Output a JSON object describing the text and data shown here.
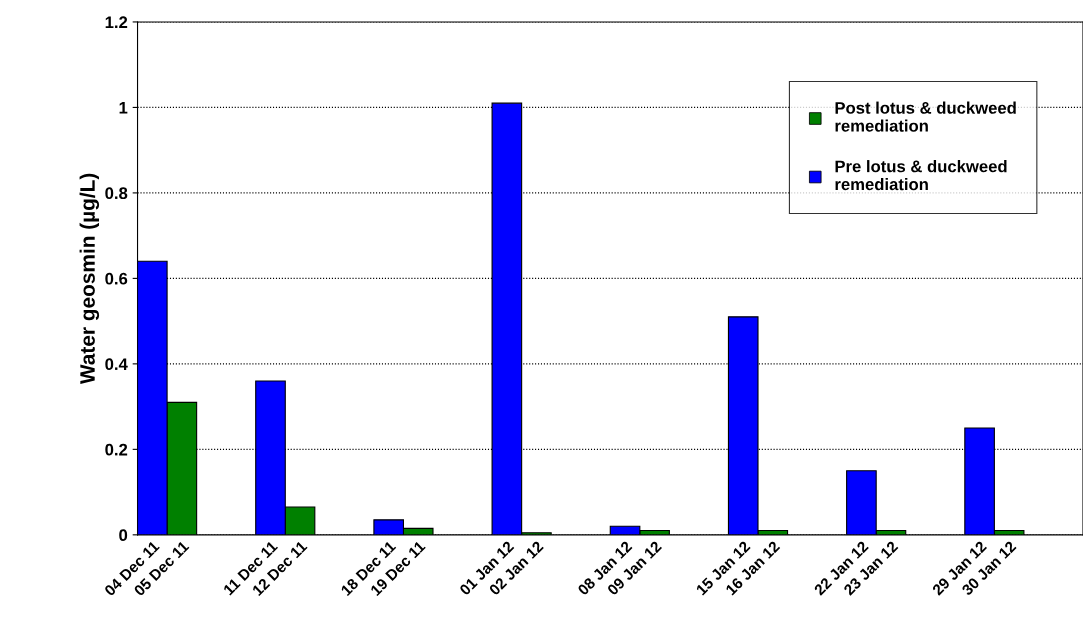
{
  "chart_data": {
    "type": "bar",
    "ylabel": "Water geosmin (µg/L)",
    "categories": [
      "04 Dec 11",
      "05 Dec 11",
      "11 Dec 11",
      "12 Dec 11",
      "18 Dec 11",
      "19 Dec 11",
      "01 Jan 12",
      "02 Jan 12",
      "08 Jan 12",
      "09 Jan 12",
      "15 Jan 12",
      "16 Jan 12",
      "22 Jan 12",
      "23 Jan 12",
      "29 Jan 12",
      "30 Jan 12"
    ],
    "series": [
      {
        "name": "Post lotus & duckweed remediation",
        "color": "#008000",
        "values": [
          null,
          0.31,
          null,
          0.065,
          null,
          0.015,
          null,
          0.005,
          null,
          0.01,
          null,
          0.01,
          null,
          0.01,
          null,
          0.01
        ]
      },
      {
        "name": "Pre lotus & duckweed remediation",
        "color": "#0000ff",
        "values": [
          0.64,
          null,
          0.36,
          null,
          0.035,
          null,
          1.01,
          null,
          0.02,
          null,
          0.51,
          null,
          0.15,
          null,
          0.25,
          null
        ]
      }
    ],
    "ylim": [
      0,
      1.2
    ],
    "yticks": [
      0,
      0.2,
      0.4,
      0.6,
      0.8,
      1,
      1.2
    ],
    "grid": "y",
    "legend": "top right"
  }
}
